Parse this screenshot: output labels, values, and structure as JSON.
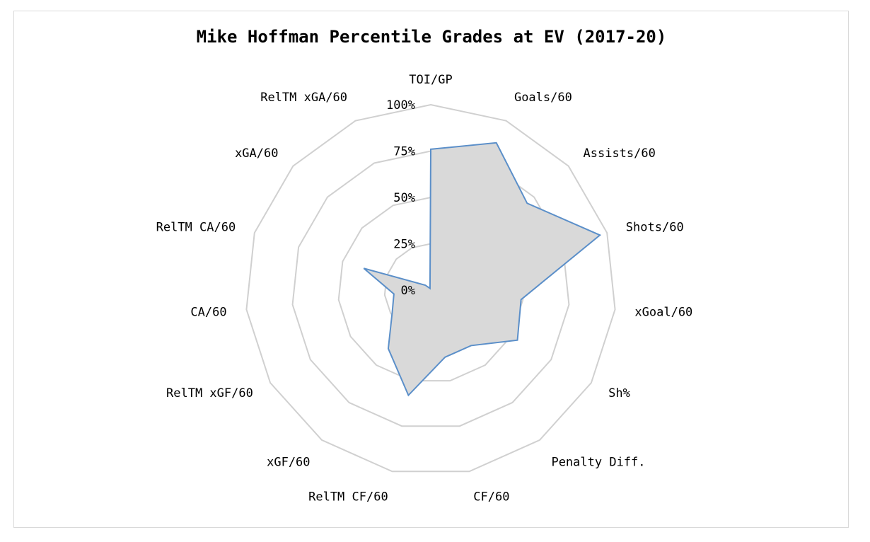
{
  "chart_data": {
    "type": "radar",
    "title": "Mike Hoffman Percentile Grades at EV (2017-20)",
    "categories": [
      "TOI/GP",
      "Goals/60",
      "Assists/60",
      "Shots/60",
      "xGoal/60",
      "Sh%",
      "Penalty Diff.",
      "CF/60",
      "RelTM CF/60",
      "xGF/60",
      "RelTM xGF/60",
      "CA/60",
      "RelTM CA/60",
      "xGA/60",
      "RelTM xGA/60"
    ],
    "series": [
      {
        "values": [
          76,
          87,
          70,
          96,
          49,
          54,
          37,
          37,
          58,
          39,
          24,
          20,
          38,
          4,
          1
        ]
      }
    ],
    "range": [
      0,
      100
    ],
    "ticks": [
      "0%",
      "25%",
      "50%",
      "75%",
      "100%"
    ],
    "grid": true,
    "colors": {
      "line": "#5b8fc9",
      "fill": "#d9d9d9",
      "grid": "#d0d0d0"
    }
  }
}
